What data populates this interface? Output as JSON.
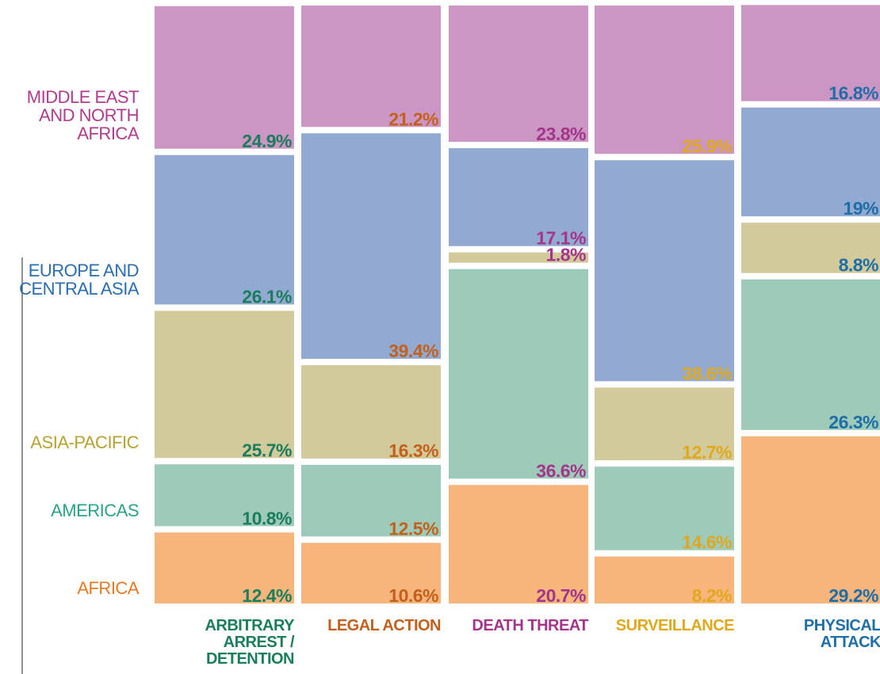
{
  "chart_data": {
    "type": "mosaic",
    "categories": [
      "ARBITRARY ARREST / DETENTION",
      "LEGAL ACTION",
      "DEATH THREAT",
      "SURVEILLANCE",
      "PHYSICAL ATTACK"
    ],
    "category_colors": [
      "#1a7d5c",
      "#c2601c",
      "#a3358a",
      "#e0a81c",
      "#1e6ea8"
    ],
    "series": [
      {
        "name": "AFRICA",
        "color": "#f7b57c",
        "label_color": "#e67a22",
        "values": [
          12.4,
          10.6,
          20.7,
          8.2,
          29.2
        ],
        "value_labels": [
          "12.4%",
          "10.6%",
          "20.7%",
          "8.2%",
          "29.2%"
        ]
      },
      {
        "name": "AMERICAS",
        "color": "#9ecbb9",
        "label_color": "#2aa488",
        "values": [
          10.8,
          12.5,
          36.6,
          14.6,
          26.3
        ],
        "value_labels": [
          "10.8%",
          "12.5%",
          "36.6%",
          "14.6%",
          "26.3%"
        ]
      },
      {
        "name": "ASIA-PACIFIC",
        "color": "#d3ca9c",
        "label_color": "#b8a232",
        "values": [
          25.7,
          16.3,
          1.8,
          12.7,
          8.8
        ],
        "value_labels": [
          "25.7%",
          "16.3%",
          "1.8%",
          "12.7%",
          "8.8%"
        ]
      },
      {
        "name": "EUROPE AND CENTRAL ASIA",
        "color": "#92aad2",
        "label_color": "#2a6db2",
        "values": [
          26.1,
          39.4,
          17.1,
          38.6,
          19
        ],
        "value_labels": [
          "26.1%",
          "39.4%",
          "17.1%",
          "38.6%",
          "19%"
        ]
      },
      {
        "name": "MIDDLE EAST AND NORTH AFRICA",
        "color": "#cc96c4",
        "label_color": "#b03c8c",
        "values": [
          24.9,
          21.2,
          23.8,
          25.9,
          16.8
        ],
        "value_labels": [
          "24.9%",
          "21.2%",
          "23.8%",
          "25.9%",
          "16.8%"
        ]
      }
    ]
  }
}
